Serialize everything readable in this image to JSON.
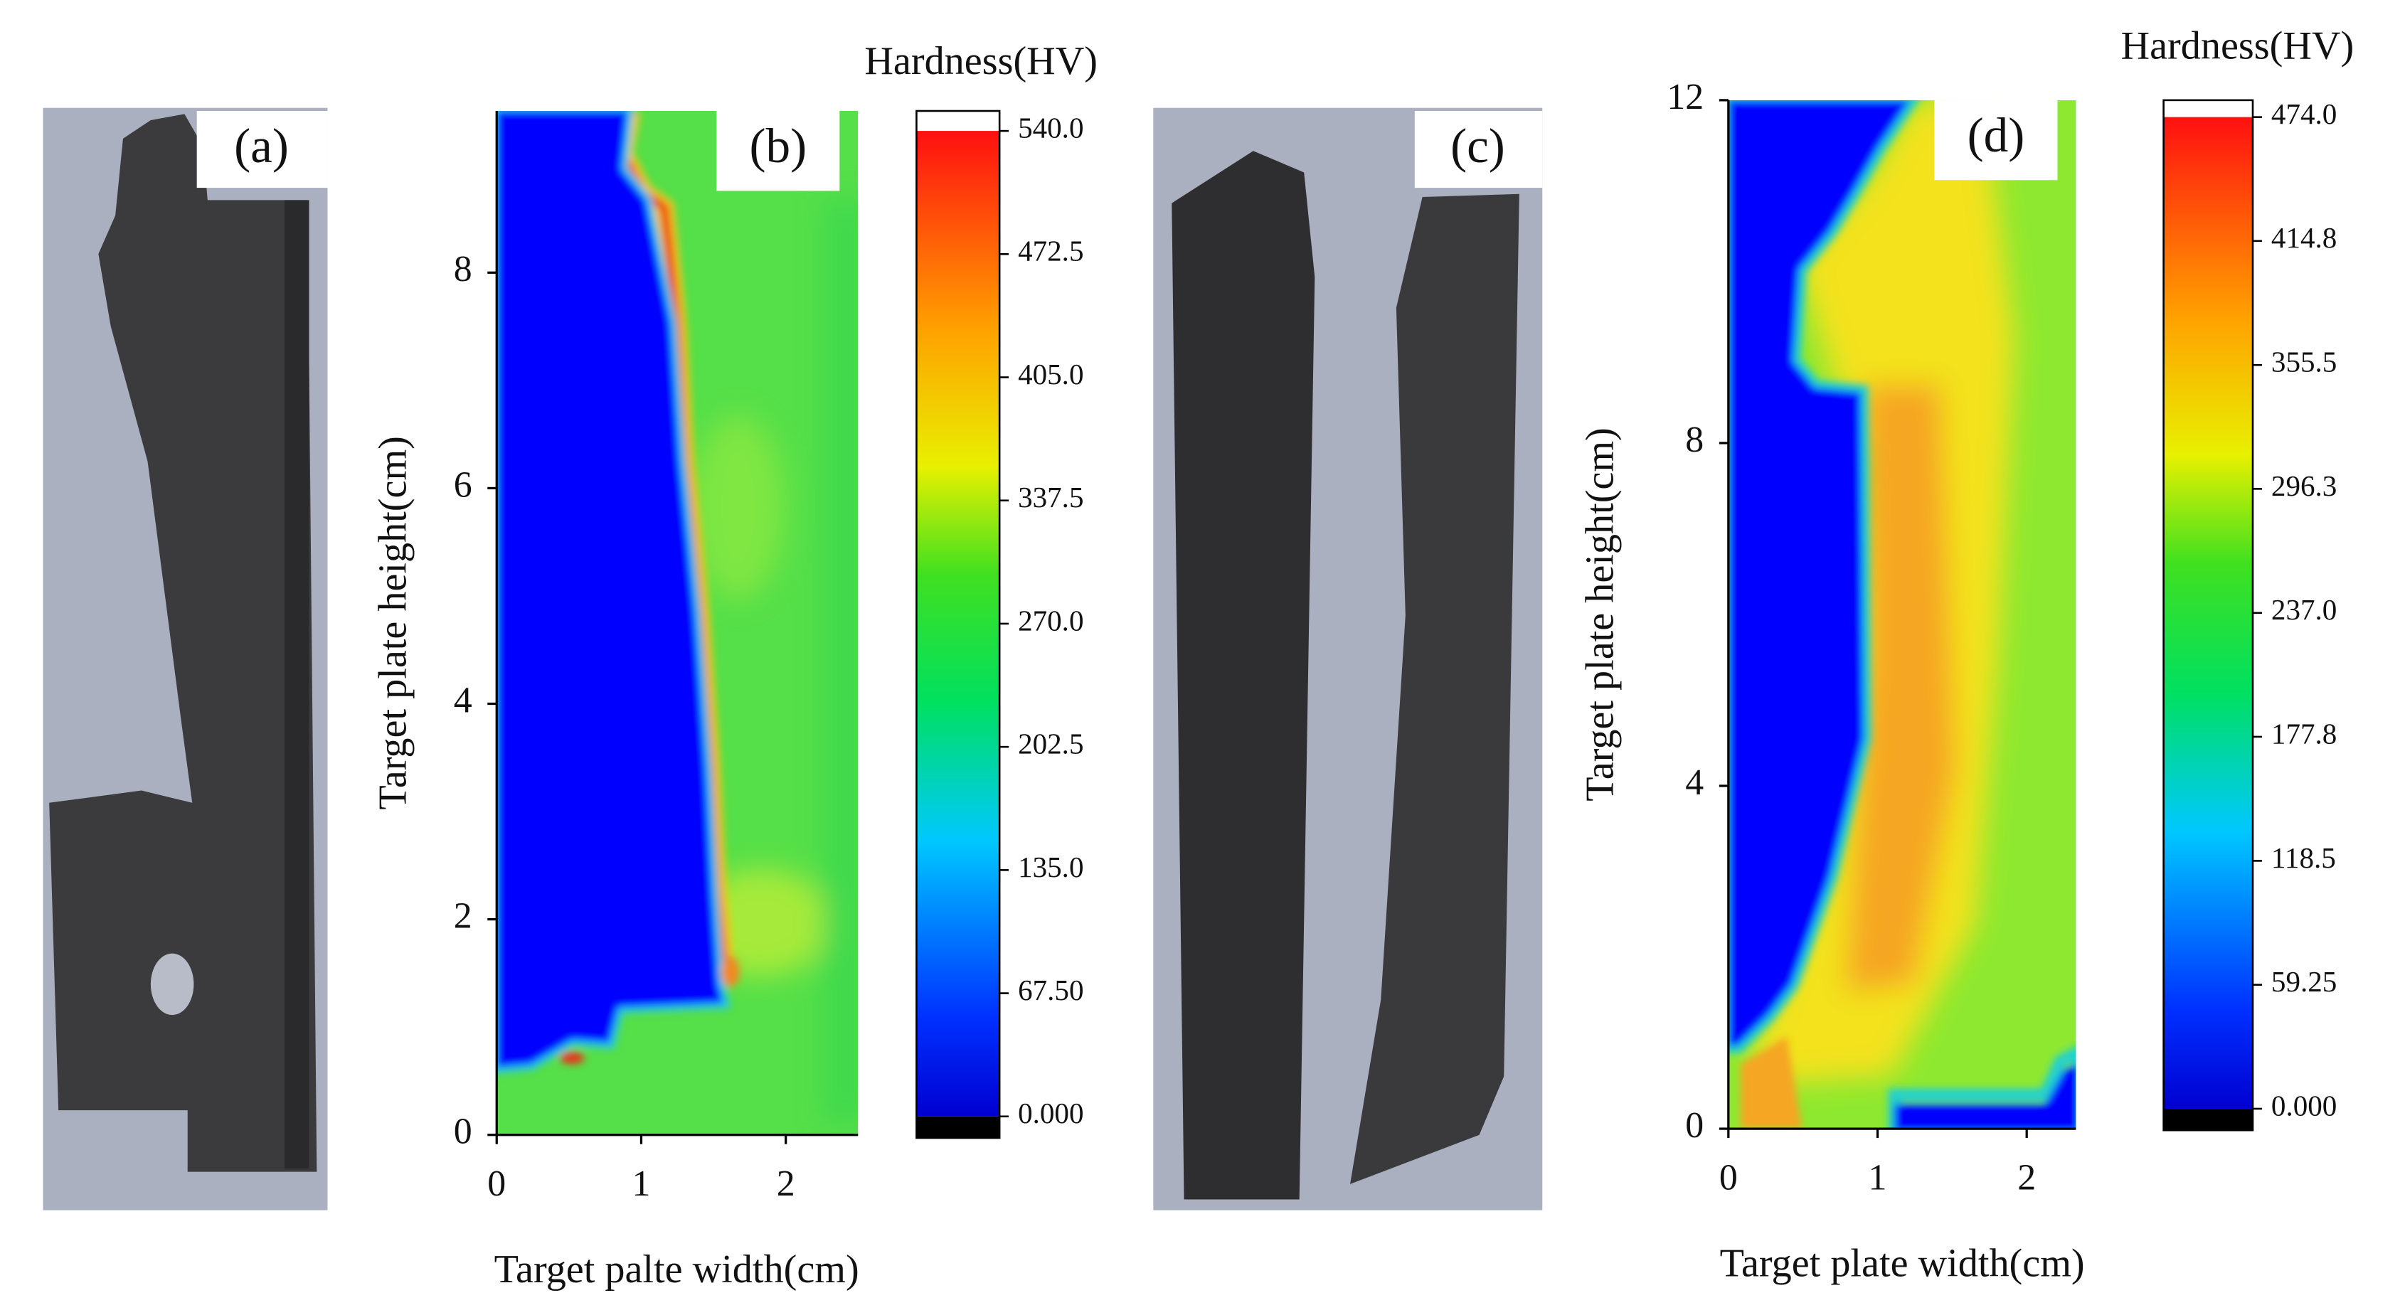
{
  "photos": [
    {
      "label": "(a)"
    },
    {
      "label": "(c)"
    }
  ],
  "chart_data": [
    {
      "type": "contour",
      "panel_label": "(b)",
      "xlabel": "Target palte width(cm)",
      "ylabel": "Target plate height(cm)",
      "xlim": [
        0,
        2.5
      ],
      "xticks": [
        0,
        1,
        2
      ],
      "ylim": [
        0,
        9.5
      ],
      "yticks": [
        0,
        2,
        4,
        6,
        8
      ],
      "colorbar": {
        "title": "Hardness(HV)",
        "lim": [
          0,
          540
        ],
        "ticks": [
          {
            "value": 0,
            "label": "0.000"
          },
          {
            "value": 67.5,
            "label": "67.50"
          },
          {
            "value": 135,
            "label": "135.0"
          },
          {
            "value": 202.5,
            "label": "202.5"
          },
          {
            "value": 270,
            "label": "270.0"
          },
          {
            "value": 337.5,
            "label": "337.5"
          },
          {
            "value": 405,
            "label": "405.0"
          },
          {
            "value": 472.5,
            "label": "472.5"
          },
          {
            "value": 540,
            "label": "540.0"
          }
        ]
      }
    },
    {
      "type": "contour",
      "panel_label": "(d)",
      "xlabel": "Target plate width(cm)",
      "ylabel": "Target plate height(cm)",
      "xlim": [
        0,
        2.33
      ],
      "xticks": [
        0,
        1,
        2
      ],
      "ylim": [
        0,
        12
      ],
      "yticks": [
        0,
        4,
        8,
        12
      ],
      "colorbar": {
        "title": "Hardness(HV)",
        "lim": [
          0,
          474
        ],
        "ticks": [
          {
            "value": 0,
            "label": "0.000"
          },
          {
            "value": 59.25,
            "label": "59.25"
          },
          {
            "value": 118.5,
            "label": "118.5"
          },
          {
            "value": 177.8,
            "label": "177.8"
          },
          {
            "value": 237,
            "label": "237.0"
          },
          {
            "value": 296.3,
            "label": "296.3"
          },
          {
            "value": 355.5,
            "label": "355.5"
          },
          {
            "value": 414.8,
            "label": "414.8"
          },
          {
            "value": 474,
            "label": "474.0"
          }
        ]
      }
    }
  ]
}
